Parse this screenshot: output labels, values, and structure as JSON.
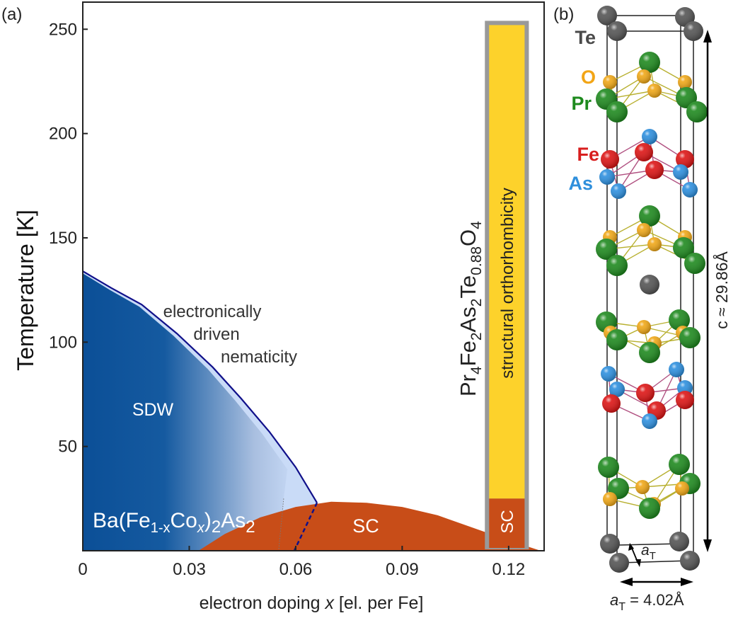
{
  "panel_labels": {
    "a": "(a)",
    "b": "(b)"
  },
  "chart_data": {
    "type": "area",
    "xlabel_parts": [
      "electron doping ",
      "x",
      " [el. per Fe]"
    ],
    "ylabel": "Temperature [K]",
    "xlim": [
      0,
      0.13
    ],
    "ylim": [
      0,
      263
    ],
    "xticks": [
      0,
      0.03,
      0.06,
      0.09,
      0.12
    ],
    "xtick_labels": [
      "0",
      "0.03",
      "0.06",
      "0.09",
      "0.12"
    ],
    "yticks": [
      50,
      100,
      150,
      200,
      250
    ],
    "ytick_labels": [
      "50",
      "100",
      "150",
      "200",
      "250"
    ],
    "grid": false,
    "regions": {
      "sdw_nematic_boundary": {
        "x": [
          0,
          0.008,
          0.0166,
          0.0266,
          0.0366,
          0.0446,
          0.0526,
          0.06,
          0.066
        ],
        "y": [
          134,
          126,
          118,
          104,
          88,
          73,
          57,
          40,
          23
        ]
      },
      "sdw_boundary_dotted": {
        "x": [
          0.0566,
          0.0552
        ],
        "y": [
          25,
          0
        ]
      },
      "nematic_boundary_dashed": {
        "x": [
          0.066,
          0.0596
        ],
        "y": [
          23,
          0
        ]
      },
      "sc_dome": {
        "x": [
          0.0326,
          0.04,
          0.05,
          0.06,
          0.07,
          0.08,
          0.09,
          0.1,
          0.11,
          0.12,
          0.129
        ],
        "y": [
          0,
          8,
          16,
          21,
          23.5,
          23,
          21,
          17,
          11,
          5,
          0
        ]
      },
      "pr4_bar": {
        "x_range": [
          0.1145,
          0.1245
        ],
        "structural_top": 252,
        "sc_top": 25
      }
    },
    "colors": {
      "sdw_dark": "#0b4f97",
      "nematic_light": "#c9dbf7",
      "sdw_line": "#10108a",
      "sc": "#c84d18",
      "bar_yellow": "#fdd22b",
      "bar_frame": "#999999"
    },
    "annotations": {
      "nematic": [
        "electronically",
        "driven",
        "nematicity"
      ],
      "sdw": "SDW",
      "sc": "SC",
      "bar_sc": "SC",
      "bar_label": "structural orthorhombicity",
      "ba_formula": [
        "Ba(Fe",
        "1-x",
        "Co",
        "x",
        ")",
        "2",
        "As",
        "2"
      ],
      "pr_formula": [
        "Pr",
        "4",
        "Fe",
        "2",
        "As",
        "2",
        "Te",
        "0.88",
        "O",
        "4"
      ]
    }
  },
  "structure": {
    "element_labels": [
      {
        "text": "Te",
        "color": "#4a4a4a"
      },
      {
        "text": "O",
        "color": "#f2a516"
      },
      {
        "text": "Pr",
        "color": "#1e8a1e"
      },
      {
        "text": "Fe",
        "color": "#d81e1e"
      },
      {
        "text": "As",
        "color": "#2f8fdc"
      }
    ],
    "c_label": "c ≈ 29.86Å",
    "a_label_parts": [
      "a",
      "T",
      " = 4.02Å"
    ],
    "a_small_parts": [
      "a",
      "T"
    ],
    "atom_colors": {
      "Te": "#555555",
      "O": "#f0a818",
      "Pr": "#1f8a1f",
      "Fe": "#dd1515",
      "As": "#2e90df"
    }
  }
}
